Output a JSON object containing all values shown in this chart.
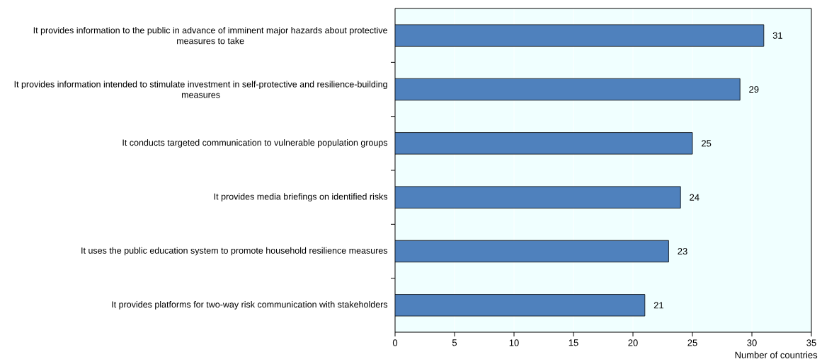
{
  "chart_data": {
    "type": "bar",
    "orientation": "horizontal",
    "categories": [
      "It provides information to the public in advance of imminent major hazards about protective measures to take",
      "It provides information intended to stimulate investment in self-protective and resilience-building measures",
      "It conducts targeted communication to vulnerable population groups",
      "It provides media briefings on identified risks",
      "It uses the public education system to promote household resilience measures",
      "It provides platforms for two-way risk communication with stakeholders"
    ],
    "values": [
      31,
      29,
      25,
      24,
      23,
      21
    ],
    "color": "#4f81bd",
    "xlabel": "Number of countries",
    "xlim": [
      0,
      35
    ],
    "xticks": [
      0,
      5,
      10,
      15,
      20,
      25,
      30,
      35
    ],
    "grid": "x",
    "data_labels": true
  }
}
